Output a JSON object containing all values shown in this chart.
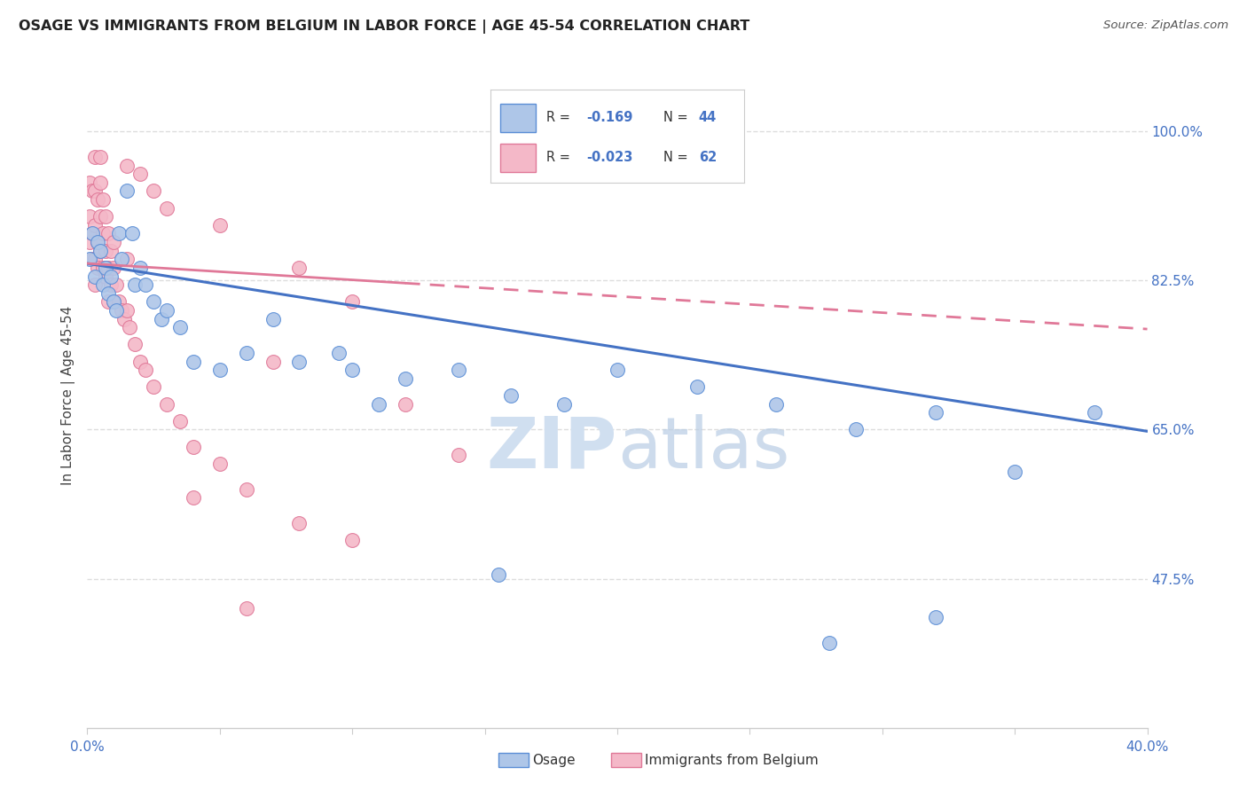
{
  "title": "OSAGE VS IMMIGRANTS FROM BELGIUM IN LABOR FORCE | AGE 45-54 CORRELATION CHART",
  "source": "Source: ZipAtlas.com",
  "ylabel": "In Labor Force | Age 45-54",
  "xlim": [
    0.0,
    0.4
  ],
  "ylim": [
    0.3,
    1.08
  ],
  "ytick_right_labels": [
    "100.0%",
    "82.5%",
    "65.0%",
    "47.5%"
  ],
  "ytick_right_values": [
    1.0,
    0.825,
    0.65,
    0.475
  ],
  "blue_color": "#aec6e8",
  "pink_color": "#f4b8c8",
  "blue_edge_color": "#5b8ed6",
  "pink_edge_color": "#e07898",
  "blue_line_color": "#4472c4",
  "pink_line_color": "#e07898",
  "watermark_color": "#d0dff0",
  "bg_color": "#ffffff",
  "grid_color": "#dddddd",
  "osage_x": [
    0.001,
    0.002,
    0.003,
    0.004,
    0.005,
    0.006,
    0.007,
    0.008,
    0.009,
    0.01,
    0.011,
    0.012,
    0.013,
    0.015,
    0.017,
    0.018,
    0.02,
    0.022,
    0.025,
    0.028,
    0.03,
    0.035,
    0.04,
    0.05,
    0.06,
    0.07,
    0.08,
    0.095,
    0.1,
    0.11,
    0.12,
    0.14,
    0.16,
    0.18,
    0.2,
    0.23,
    0.26,
    0.29,
    0.32,
    0.35,
    0.38,
    0.32,
    0.28,
    0.155
  ],
  "osage_y": [
    0.85,
    0.88,
    0.83,
    0.87,
    0.86,
    0.82,
    0.84,
    0.81,
    0.83,
    0.8,
    0.79,
    0.88,
    0.85,
    0.93,
    0.88,
    0.82,
    0.84,
    0.82,
    0.8,
    0.78,
    0.79,
    0.77,
    0.73,
    0.72,
    0.74,
    0.78,
    0.73,
    0.74,
    0.72,
    0.68,
    0.71,
    0.72,
    0.69,
    0.68,
    0.72,
    0.7,
    0.68,
    0.65,
    0.67,
    0.6,
    0.67,
    0.43,
    0.4,
    0.48
  ],
  "belgium_x": [
    0.001,
    0.001,
    0.001,
    0.002,
    0.002,
    0.002,
    0.003,
    0.003,
    0.003,
    0.003,
    0.003,
    0.004,
    0.004,
    0.004,
    0.005,
    0.005,
    0.005,
    0.006,
    0.006,
    0.006,
    0.007,
    0.007,
    0.007,
    0.008,
    0.008,
    0.008,
    0.009,
    0.009,
    0.01,
    0.01,
    0.01,
    0.011,
    0.012,
    0.013,
    0.014,
    0.015,
    0.016,
    0.018,
    0.02,
    0.022,
    0.025,
    0.03,
    0.035,
    0.04,
    0.05,
    0.06,
    0.07,
    0.08,
    0.1,
    0.12,
    0.14,
    0.015,
    0.02,
    0.03,
    0.005,
    0.025,
    0.015,
    0.05,
    0.08,
    0.1,
    0.04,
    0.06
  ],
  "belgium_y": [
    0.94,
    0.9,
    0.87,
    0.93,
    0.88,
    0.85,
    0.97,
    0.93,
    0.89,
    0.85,
    0.82,
    0.92,
    0.87,
    0.84,
    0.94,
    0.9,
    0.86,
    0.92,
    0.88,
    0.84,
    0.9,
    0.86,
    0.83,
    0.88,
    0.84,
    0.8,
    0.86,
    0.82,
    0.87,
    0.84,
    0.8,
    0.82,
    0.8,
    0.79,
    0.78,
    0.79,
    0.77,
    0.75,
    0.73,
    0.72,
    0.7,
    0.68,
    0.66,
    0.63,
    0.61,
    0.58,
    0.73,
    0.54,
    0.52,
    0.68,
    0.62,
    0.96,
    0.95,
    0.91,
    0.97,
    0.93,
    0.85,
    0.89,
    0.84,
    0.8,
    0.57,
    0.44
  ],
  "blue_trendline_x0": 0.0,
  "blue_trendline_y0": 0.845,
  "blue_trendline_x1": 0.4,
  "blue_trendline_y1": 0.648,
  "pink_trendline_x0": 0.0,
  "pink_trendline_y0": 0.845,
  "pink_trendline_x1": 0.4,
  "pink_trendline_y1": 0.768
}
